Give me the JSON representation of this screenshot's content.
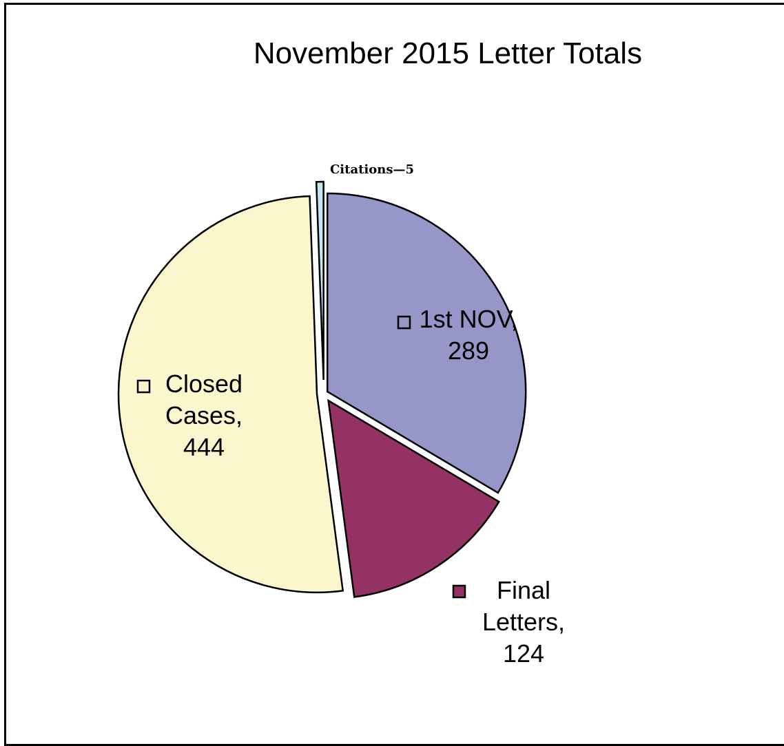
{
  "chart_data": {
    "type": "pie",
    "title": "November  2015 Letter Totals",
    "slices": [
      {
        "name": "1st NOV",
        "value": 289,
        "color": "#9696C8",
        "label_lines": [
          "1st NOV,",
          "289"
        ]
      },
      {
        "name": "Final Letters",
        "value": 124,
        "color": "#943363",
        "label_lines": [
          "Final",
          "Letters,",
          "124"
        ]
      },
      {
        "name": "Closed Cases",
        "value": 444,
        "color": "#FAF7CD",
        "label_lines": [
          "Closed",
          "Cases,",
          "444"
        ]
      },
      {
        "name": "Citations",
        "value": 5,
        "color": "#C8E6F0",
        "label_lines": [
          "Citations—5"
        ]
      }
    ],
    "legend": "none",
    "exploded": true
  }
}
